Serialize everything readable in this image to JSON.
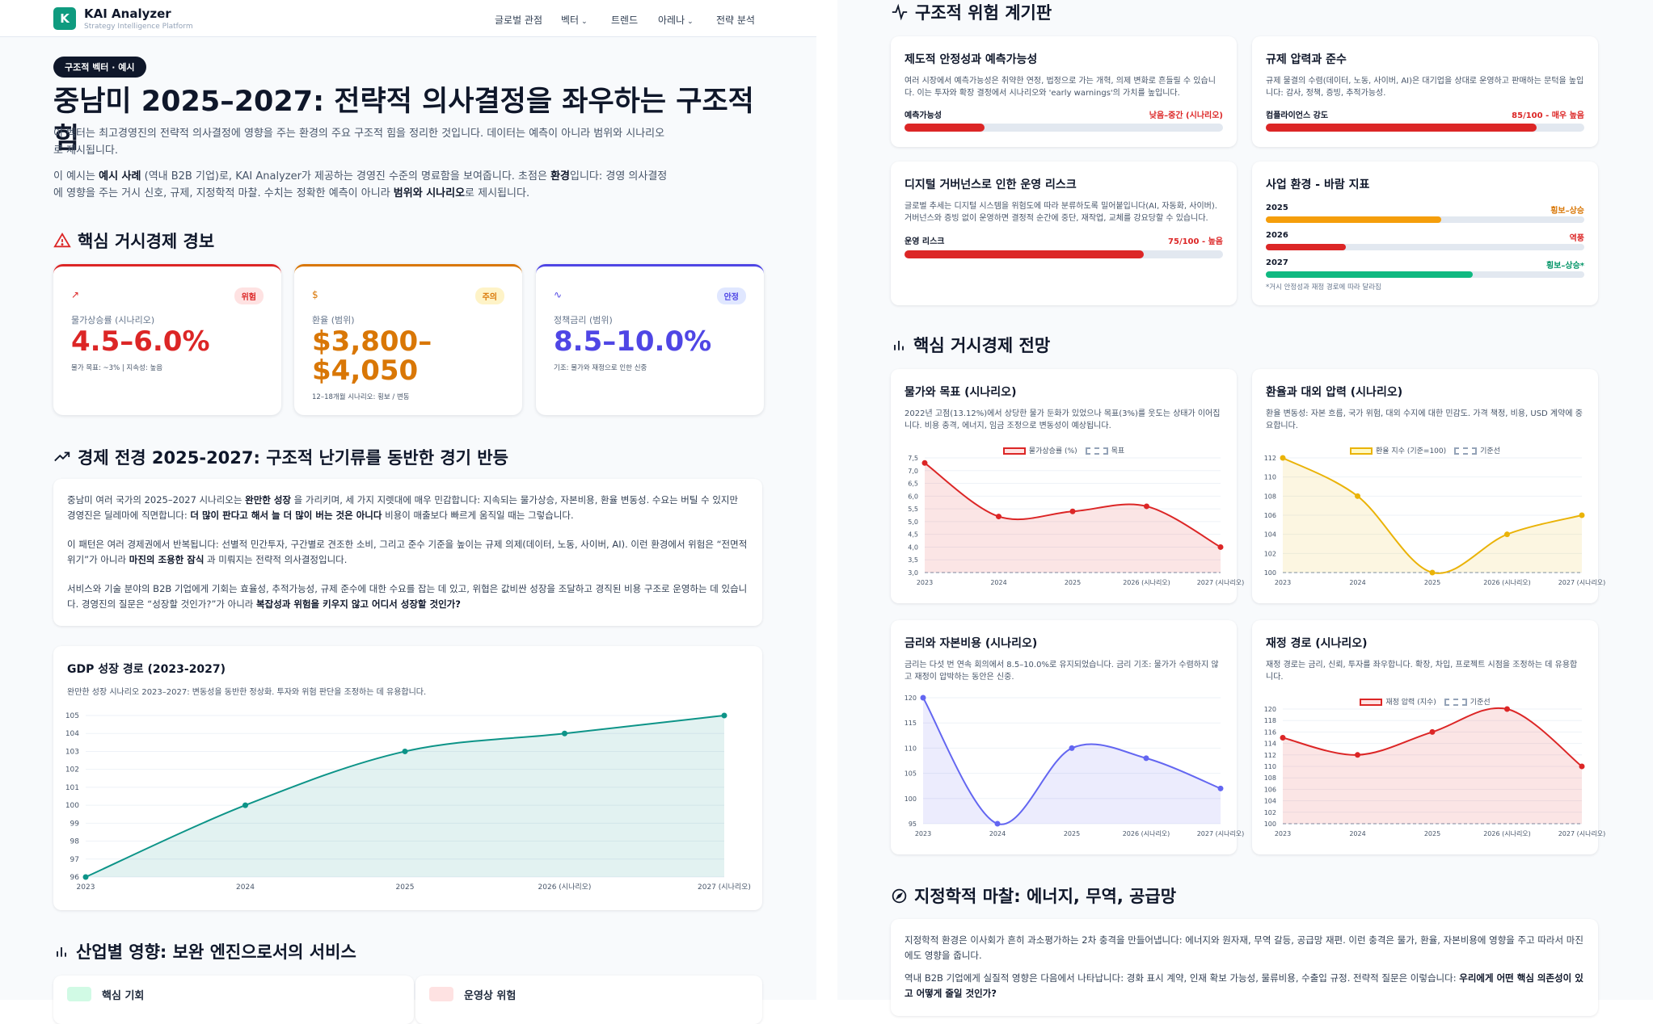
{
  "nav": {
    "brand": "KAI Analyzer",
    "brand_sub": "Strategy Intelligence Platform",
    "logo": "K",
    "items": [
      "글로벌 관점",
      "벡터",
      "트렌드",
      "아레나",
      "전략 분석"
    ]
  },
  "hero": {
    "badge": "구조적 벡터 · 예시",
    "title": "중남미 2025–2027: 전략적 의사결정을 좌우하는 구조적 힘",
    "p1": "이 벡터는 최고경영진의 전략적 의사결정에 영향을 주는 환경의 주요 구조적 힘을 정리한 것입니다. 데이터는 예측이 아니라 범위와 시나리오로 제시됩니다.",
    "p2_a": "이 예시는 ",
    "p2_b": "예시 사례",
    "p2_c": " (역내 B2B 기업)로, KAI Analyzer가 제공하는 경영진 수준의 명료함을 보여줍니다. 초점은 ",
    "p2_d": "환경",
    "p2_e": "입니다: 경영 의사결정에 영향을 주는 거시 신호, 규제, 지정학적 마찰. 수치는 정확한 예측이 아니라 ",
    "p2_f": "범위와 시나리오",
    "p2_g": "로 제시됩니다."
  },
  "alerts": {
    "title": "핵심 거시경제 경보",
    "cards": [
      {
        "tag": "위험",
        "label": "물가상승률 (시나리오)",
        "value": "4.5–6.0%",
        "sub": "물가 목표: ~3% | 지속성: 높음",
        "color": "#dc2626",
        "tagbg": "#fee2e2"
      },
      {
        "tag": "주의",
        "label": "환율 (범위)",
        "value": "$3,800–$4,050",
        "sub": "12–18개월 시나리오: 횡보 / 변동",
        "color": "#d97706",
        "tagbg": "#fef3c7"
      },
      {
        "tag": "안정",
        "label": "정책금리 (범위)",
        "value": "8.5–10.0%",
        "sub": "기조: 물가와 재정으로 인한 신중",
        "color": "#4f46e5",
        "tagbg": "#e0e7ff"
      }
    ]
  },
  "outlook": {
    "title": "경제 전경 2025-2027: 구조적 난기류를 동반한 경기 반등",
    "p1_a": "중남미 여러 국가의 2025–2027 시나리오는 ",
    "p1_b": "완만한 성장",
    "p1_c": " 을 가리키며, 세 가지 지렛대에 매우 민감합니다: 지속되는 물가상승, 자본비용, 환율 변동성. 수요는 버틸 수 있지만 경영진은 딜레마에 직면합니다: ",
    "p1_d": "더 많이 판다고 해서 늘 더 많이 버는 것은 아니다",
    "p1_e": " 비용이 매출보다 빠르게 움직일 때는 그렇습니다.",
    "p2_a": "이 패턴은 여러 경제권에서 반복됩니다: 선별적 민간투자, 구간별로 견조한 소비, 그리고 준수 기준을 높이는 규제 의제(데이터, 노동, 사이버, AI). 이런 환경에서 위험은 “전면적 위기”가 아니라 ",
    "p2_b": "마진의 조용한 잠식",
    "p2_c": " 과 미뤄지는 전략적 의사결정입니다.",
    "p3_a": "서비스와 기술 분야의 B2B 기업에게 기회는 효율성, 추적가능성, 규제 준수에 대한 수요를 잡는 데 있고, 위협은 값비싼 성장을 조달하고 경직된 비용 구조로 운영하는 데 있습니다. 경영진의 질문은 “성장할 것인가?”가 아니라 ",
    "p3_b": "복잡성과 위험을 키우지 않고 어디서 성장할 것인가?"
  },
  "gdp_card": {
    "title": "GDP 성장 경로 (2023-2027)",
    "desc": "완만한 성장 시나리오 2023–2027: 변동성을 동반한 정상화. 투자와 위험 판단을 조정하는 데 유용합니다."
  },
  "industry": {
    "title": "산업별 영향: 보완 엔진으로서의 서비스",
    "c1": "핵심 기회",
    "c2": "운영상 위험"
  },
  "risk": {
    "title": "구조적 위험 계기판",
    "cards": [
      {
        "title": "제도적 안정성과 예측가능성",
        "desc": "여러 시장에서 예측가능성은 취약한 연정, 법정으로 가는 개혁, 의제 변화로 흔들릴 수 있습니다. 이는 투자와 확장 결정에서 시나리오와 'early warnings'의 가치를 높입니다.",
        "bar_label": "예측가능성",
        "bar_value": "낮음–중간 (시나리오)",
        "level": 0.25,
        "color": "#dc2626"
      },
      {
        "title": "규제 압력과 준수",
        "desc": "규제 물결의 수렴(데이터, 노동, 사이버, AI)은 대기업을 상대로 운영하고 판매하는 문턱을 높입니다: 감사, 정책, 증빙, 추적가능성.",
        "bar_label": "컴플라이언스 강도",
        "bar_value": "85/100 - 매우 높음",
        "level": 0.85,
        "color": "#dc2626"
      },
      {
        "title": "디지털 거버넌스로 인한 운영 리스크",
        "desc": "글로벌 추세는 디지털 시스템을 위험도에 따라 분류하도록 밀어붙입니다(AI, 자동화, 사이버). 거버넌스와 증빙 없이 운영하면 결정적 순간에 중단, 재작업, 교체를 강요당할 수 있습니다.",
        "bar_label": "운영 리스크",
        "bar_value": "75/100 - 높음",
        "level": 0.75,
        "color": "#dc2626"
      },
      {
        "title": "사업 환경 - 바람 지표",
        "rows": [
          {
            "year": "2025",
            "value": "횡보–상승",
            "level": 0.55,
            "color": "#f59e0b"
          },
          {
            "year": "2026",
            "value": "역풍",
            "level": 0.25,
            "color": "#dc2626"
          },
          {
            "year": "2027",
            "value": "횡보–상승*",
            "level": 0.65,
            "color": "#10b981"
          }
        ],
        "note": "*거시 안정성과 재정 경로에 따라 달라짐"
      }
    ]
  },
  "macro": {
    "title": "핵심 거시경제 전망"
  },
  "charts_text": {
    "inflation": {
      "title": "물가와 목표 (시나리오)",
      "desc": "2022년 고점(13.12%)에서 상당한 물가 둔화가 있었으나 목표(3%)를 웃도는 상태가 이어집니다. 비용 충격, 에너지, 임금 조정으로 변동성이 예상됩니다.",
      "legend1": "물가상승률 (%)",
      "legend2": "목표"
    },
    "fx": {
      "title": "환율과 대외 압력 (시나리오)",
      "desc": "환율 변동성: 자본 흐름, 국가 위험, 대외 수지에 대한 민감도. 가격 책정, 비용, USD 계약에 중요합니다.",
      "legend1": "환율 지수 (기준=100)",
      "legend2": "기준선"
    },
    "rates": {
      "title": "금리와 자본비용 (시나리오)",
      "desc": "금리는 다섯 번 연속 회의에서 8.5–10.0%로 유지되었습니다. 금리 기조: 물가가 수렴하지 않고 재정이 압박하는 동안은 신중."
    },
    "fiscal": {
      "title": "재정 경로 (시나리오)",
      "desc": "재정 경로는 금리, 신뢰, 투자를 좌우합니다. 확장, 차입, 프로젝트 시점을 조정하는 데 유용합니다.",
      "legend1": "재정 압력 (지수)",
      "legend2": "기준선"
    }
  },
  "geo": {
    "title": "지정학적 마찰: 에너지, 무역, 공급망",
    "p1": "지정학적 환경은 이사회가 흔히 과소평가하는 2차 충격을 만들어냅니다: 에너지와 원자재, 무역 갈등, 공급망 재편. 이런 충격은 물가, 환율, 자본비용에 영향을 주고 따라서 마진에도 영향을 줍니다.",
    "p2_a": "역내 B2B 기업에게 실질적 영향은 다음에서 나타납니다: 경화 표시 계약, 인재 확보 가능성, 물류비용, 수출입 규정. 전략적 질문은 이렇습니다: ",
    "p2_b": "우리에게 어떤 핵심 의존성이 있고 어떻게 줄일 것인가?"
  },
  "chart_data": [
    {
      "type": "area",
      "title": "GDP 성장 경로 (2023-2027)",
      "x": [
        "2023",
        "2024",
        "2025",
        "2026 (시나리오)",
        "2027 (시나리오)"
      ],
      "series": [
        {
          "values": [
            96,
            100,
            103,
            104,
            105
          ]
        }
      ],
      "ylim": [
        96,
        105
      ],
      "yticks": [
        96,
        97,
        98,
        99,
        100,
        101,
        102,
        103,
        104,
        105
      ],
      "color": "#0d9488"
    },
    {
      "type": "area",
      "title": "물가와 목표 (시나리오)",
      "x": [
        "2023",
        "2024",
        "2025",
        "2026 (시나리오)",
        "2027 (시나리오)"
      ],
      "series": [
        {
          "name": "물가상승률 (%)",
          "values": [
            7.3,
            5.2,
            5.4,
            5.6,
            4.0
          ]
        },
        {
          "name": "목표",
          "values": [
            3,
            3,
            3,
            3,
            3
          ]
        }
      ],
      "ylim": [
        3.0,
        7.5
      ],
      "yticks": [
        "3,0",
        "3,5",
        "4,0",
        "4,5",
        "5,0",
        "5,5",
        "6,0",
        "6,5",
        "7,0",
        "7,5"
      ],
      "color": "#dc2626"
    },
    {
      "type": "area",
      "title": "환율과 대외 압력 (시나리오)",
      "x": [
        "2023",
        "2024",
        "2025",
        "2026 (시나리오)",
        "2027 (시나리오)"
      ],
      "series": [
        {
          "name": "환율 지수 (기준=100)",
          "values": [
            112,
            108,
            100,
            104,
            106
          ]
        },
        {
          "name": "기준선",
          "values": [
            100,
            100,
            100,
            100,
            100
          ]
        }
      ],
      "ylim": [
        100,
        112
      ],
      "yticks": [
        100,
        102,
        104,
        106,
        108,
        110,
        112
      ],
      "color": "#eab308"
    },
    {
      "type": "area",
      "title": "금리와 자본비용 (시나리오)",
      "x": [
        "2023",
        "2024",
        "2025",
        "2026 (시나리오)",
        "2027 (시나리오)"
      ],
      "series": [
        {
          "values": [
            120,
            95,
            110,
            108,
            102
          ]
        }
      ],
      "ylim": [
        95,
        120
      ],
      "yticks": [
        95,
        100,
        105,
        110,
        115,
        120
      ],
      "color": "#6366f1"
    },
    {
      "type": "area",
      "title": "재정 경로 (시나리오)",
      "x": [
        "2023",
        "2024",
        "2025",
        "2026 (시나리오)",
        "2027 (시나리오)"
      ],
      "series": [
        {
          "name": "재정 압력 (지수)",
          "values": [
            115,
            112,
            116,
            120,
            110
          ]
        },
        {
          "name": "기준선",
          "values": [
            100,
            100,
            100,
            100,
            100
          ]
        }
      ],
      "ylim": [
        100,
        120
      ],
      "yticks": [
        100,
        102,
        104,
        106,
        108,
        110,
        112,
        114,
        116,
        118,
        120
      ],
      "color": "#dc2626"
    }
  ]
}
